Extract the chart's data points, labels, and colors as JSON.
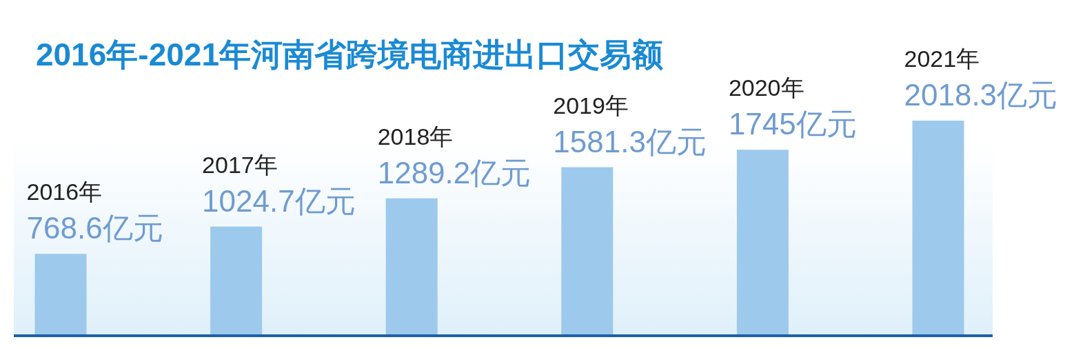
{
  "chart_data": {
    "type": "bar",
    "title": "2016年-2021年河南省跨境电商进出口交易额",
    "categories": [
      "2016年",
      "2017年",
      "2018年",
      "2019年",
      "2020年",
      "2021年"
    ],
    "values": [
      768.6,
      1024.7,
      1289.2,
      1581.3,
      1745,
      2018.3
    ],
    "value_labels": [
      "768.6亿元",
      "1024.7亿元",
      "1289.2亿元",
      "1581.3亿元",
      "1745亿元",
      "2018.3亿元"
    ],
    "color": "#9dc9ec"
  }
}
